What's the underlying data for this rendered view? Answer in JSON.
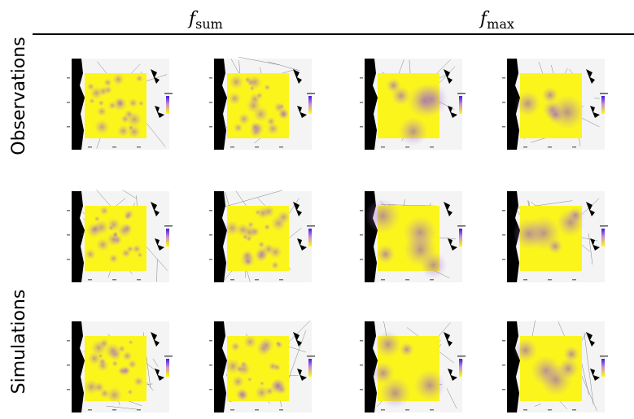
{
  "header": {
    "columns": [
      {
        "symbol": "f",
        "subscript": "sum"
      },
      {
        "symbol": "f",
        "subscript": "max"
      }
    ]
  },
  "rows": {
    "labels": [
      "Observations",
      "Simulations"
    ]
  }
}
